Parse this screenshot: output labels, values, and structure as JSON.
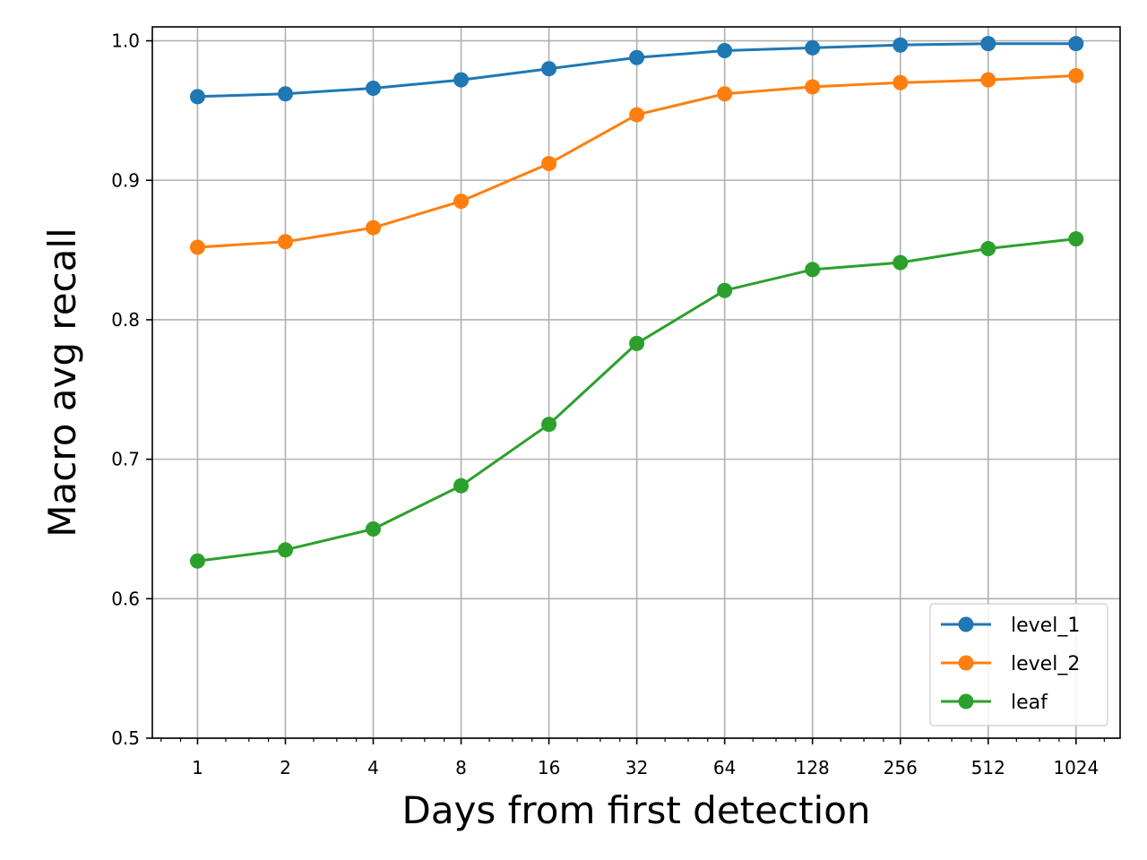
{
  "chart_data": {
    "type": "line",
    "title": "",
    "xlabel": "Days from first detection",
    "ylabel": "Macro avg recall",
    "x_scale": "log2",
    "x": [
      1,
      2,
      4,
      8,
      16,
      32,
      64,
      128,
      256,
      512,
      1024
    ],
    "x_tick_labels": [
      "1",
      "2",
      "4",
      "8",
      "16",
      "32",
      "64",
      "128",
      "256",
      "512",
      "1024"
    ],
    "y_ticks": [
      0.5,
      0.6,
      0.7,
      0.8,
      0.9,
      1.0
    ],
    "y_tick_labels": [
      "0.5",
      "0.6",
      "0.7",
      "0.8",
      "0.9",
      "1.0"
    ],
    "ylim": [
      0.5,
      1.01
    ],
    "grid": true,
    "legend_position": "lower-right",
    "series": [
      {
        "name": "level_1",
        "color": "#1f77b4",
        "marker": "circle",
        "values": [
          0.96,
          0.962,
          0.966,
          0.972,
          0.98,
          0.988,
          0.993,
          0.995,
          0.997,
          0.998,
          0.998
        ]
      },
      {
        "name": "level_2",
        "color": "#ff7f0e",
        "marker": "circle",
        "values": [
          0.852,
          0.856,
          0.866,
          0.885,
          0.912,
          0.947,
          0.962,
          0.967,
          0.97,
          0.972,
          0.975
        ]
      },
      {
        "name": "leaf",
        "color": "#2ca02c",
        "marker": "circle",
        "values": [
          0.627,
          0.635,
          0.65,
          0.681,
          0.725,
          0.783,
          0.821,
          0.836,
          0.841,
          0.851,
          0.858
        ]
      }
    ]
  }
}
